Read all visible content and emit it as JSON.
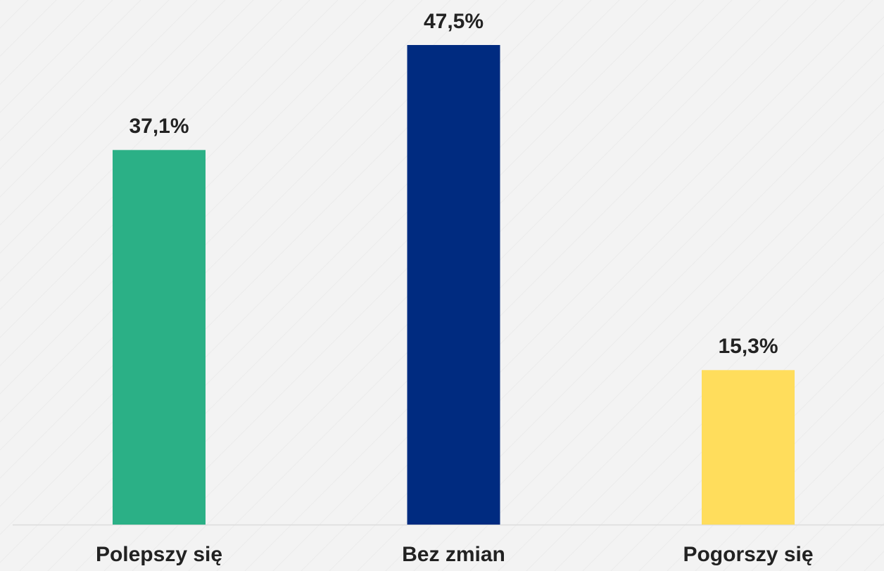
{
  "chart_data": {
    "type": "bar",
    "categories": [
      "Polepszy się",
      "Bez zmian",
      "Pogorszy się"
    ],
    "values": [
      37.1,
      47.5,
      15.3
    ],
    "value_labels": [
      "37,1%",
      "47,5%",
      "15,3%"
    ],
    "colors": [
      "#2bb086",
      "#002b80",
      "#ffdd5c"
    ]
  }
}
